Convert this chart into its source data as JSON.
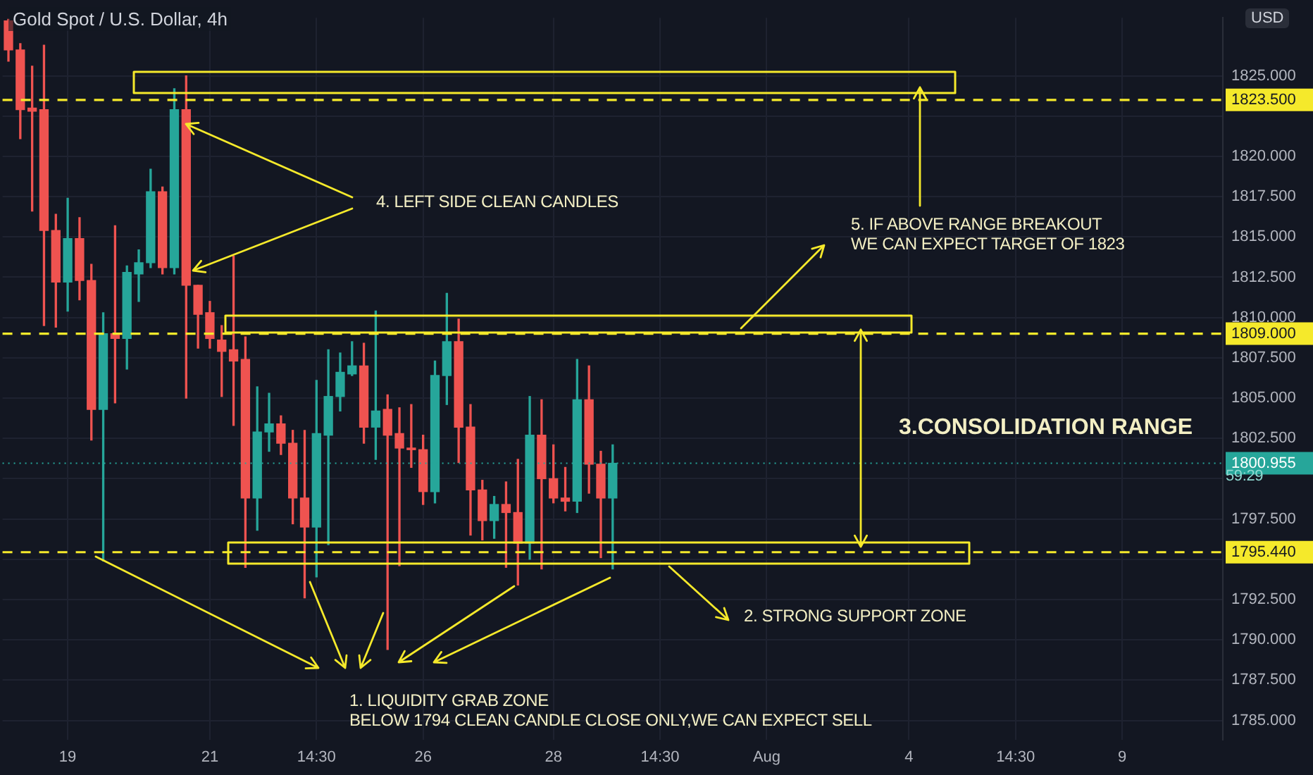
{
  "chart_data": {
    "type": "candlestick",
    "title": "Gold Spot / U.S. Dollar, 4h",
    "ylabel": "USD",
    "categories": [
      null,
      null,
      null,
      null,
      null,
      "19",
      null,
      null,
      null,
      null,
      null,
      null,
      null,
      null,
      null,
      null,
      null,
      "21",
      null,
      null,
      null,
      null,
      null,
      null,
      null,
      null,
      "14:30",
      null,
      null,
      null,
      null,
      null,
      null,
      null,
      null,
      "26",
      null,
      null,
      null,
      null,
      null,
      null,
      null,
      null,
      null,
      null,
      "28",
      null,
      null,
      null,
      null,
      null,
      null,
      null,
      null,
      "14:30",
      null,
      null,
      null,
      null,
      null,
      null,
      null,
      null,
      "Aug",
      null,
      null,
      null,
      null,
      null,
      null,
      null,
      null,
      null,
      null,
      null,
      "4",
      null,
      null,
      null,
      null,
      null,
      null,
      null,
      null,
      "14:30",
      null,
      null,
      null,
      null,
      null,
      null,
      null,
      null,
      "9",
      null,
      null,
      null,
      null,
      null,
      null,
      null,
      null
    ],
    "ohlc": [
      [
        1828.4,
        1828.5,
        1825.9,
        1826.6
      ],
      [
        1826.6,
        1827.0,
        1821.1,
        1822.9
      ],
      [
        1823.0,
        1825.6,
        1816.6,
        1822.8
      ],
      [
        1822.9,
        1826.9,
        1809.5,
        1815.4
      ],
      [
        1815.4,
        1816.4,
        1809.4,
        1812.2
      ],
      [
        1812.2,
        1817.4,
        1810.4,
        1814.9
      ],
      [
        1814.9,
        1816.2,
        1811.1,
        1812.3
      ],
      [
        1812.3,
        1813.3,
        1802.4,
        1804.3
      ],
      [
        1804.3,
        1810.3,
        1794.9,
        1809.0
      ],
      [
        1809.0,
        1815.7,
        1804.7,
        1808.7
      ],
      [
        1808.7,
        1813.2,
        1806.8,
        1812.8
      ],
      [
        1812.7,
        1814.2,
        1811.0,
        1813.4
      ],
      [
        1813.4,
        1819.2,
        1813.1,
        1817.8
      ],
      [
        1817.8,
        1818.1,
        1812.7,
        1813.1
      ],
      [
        1813.1,
        1824.2,
        1812.7,
        1822.9
      ],
      [
        1822.9,
        1825.0,
        1805.0,
        1812.0
      ],
      [
        1812.0,
        1812.0,
        1808.1,
        1810.2
      ],
      [
        1810.3,
        1811.0,
        1808.1,
        1808.7
      ],
      [
        1808.6,
        1809.5,
        1805.1,
        1807.9
      ],
      [
        1808.0,
        1813.8,
        1803.3,
        1807.3
      ],
      [
        1807.4,
        1808.8,
        1794.5,
        1798.8
      ],
      [
        1798.8,
        1805.7,
        1796.8,
        1802.9
      ],
      [
        1802.9,
        1805.3,
        1801.7,
        1803.4
      ],
      [
        1803.4,
        1803.9,
        1801.5,
        1802.2
      ],
      [
        1802.2,
        1803.0,
        1797.2,
        1798.8
      ],
      [
        1798.8,
        1803.0,
        1792.6,
        1797.0
      ],
      [
        1797.0,
        1806.1,
        1793.9,
        1802.8
      ],
      [
        1802.7,
        1808.0,
        1795.9,
        1805.1
      ],
      [
        1805.1,
        1807.8,
        1804.2,
        1806.6
      ],
      [
        1806.5,
        1808.5,
        1806.4,
        1807.0
      ],
      [
        1807.0,
        1808.4,
        1802.2,
        1803.2
      ],
      [
        1803.2,
        1810.4,
        1801.2,
        1804.2
      ],
      [
        1804.3,
        1805.2,
        1789.4,
        1802.7
      ],
      [
        1802.8,
        1804.4,
        1794.6,
        1801.9
      ],
      [
        1801.9,
        1804.6,
        1800.7,
        1801.8
      ],
      [
        1801.8,
        1802.7,
        1798.4,
        1799.2
      ],
      [
        1799.2,
        1807.3,
        1798.5,
        1806.4
      ],
      [
        1806.4,
        1811.5,
        1804.6,
        1808.5
      ],
      [
        1808.5,
        1809.9,
        1801.0,
        1803.2
      ],
      [
        1803.2,
        1804.6,
        1796.5,
        1799.3
      ],
      [
        1799.3,
        1799.9,
        1796.2,
        1797.4
      ],
      [
        1797.4,
        1798.9,
        1796.3,
        1798.4
      ],
      [
        1798.4,
        1799.8,
        1794.5,
        1797.9
      ],
      [
        1797.9,
        1801.2,
        1793.4,
        1796.0
      ],
      [
        1796.0,
        1805.1,
        1795.0,
        1802.7
      ],
      [
        1802.7,
        1804.9,
        1794.4,
        1800.0
      ],
      [
        1800.0,
        1802.1,
        1798.5,
        1798.8
      ],
      [
        1798.8,
        1800.7,
        1798.0,
        1798.6
      ],
      [
        1798.6,
        1807.4,
        1797.9,
        1804.9
      ],
      [
        1804.9,
        1807.0,
        1799.1,
        1800.9
      ],
      [
        1800.9,
        1801.7,
        1795.1,
        1798.8
      ],
      [
        1798.8,
        1802.1,
        1794.4,
        1800.955
      ],
      null,
      null,
      null,
      null,
      null,
      null,
      null,
      null,
      null,
      null,
      null,
      null,
      null,
      null,
      null,
      null,
      null,
      null,
      null,
      null,
      null,
      null,
      null,
      null,
      null,
      null,
      null,
      null,
      null,
      null,
      null,
      null,
      null,
      null,
      null,
      null,
      null,
      null,
      null,
      null,
      null,
      null,
      null,
      null,
      null,
      null,
      null,
      null,
      null,
      null,
      null
    ],
    "colors": [
      "#ef5350",
      "#ef5350",
      "#ef5350",
      "#ef5350",
      "#ef5350",
      "#26a69a",
      "#ef5350",
      "#ef5350",
      "#26a69a",
      "#ef5350",
      "#26a69a",
      "#26a69a",
      "#26a69a",
      "#ef5350",
      "#26a69a",
      "#ef5350",
      "#ef5350",
      "#ef5350",
      "#ef5350",
      "#ef5350",
      "#ef5350",
      "#26a69a",
      "#26a69a",
      "#ef5350",
      "#ef5350",
      "#ef5350",
      "#26a69a",
      "#26a69a",
      "#26a69a",
      "#26a69a",
      "#ef5350",
      "#26a69a",
      "#ef5350",
      "#ef5350",
      "#ef5350",
      "#ef5350",
      "#26a69a",
      "#26a69a",
      "#ef5350",
      "#ef5350",
      "#ef5350",
      "#26a69a",
      "#ef5350",
      "#ef5350",
      "#26a69a",
      "#ef5350",
      "#ef5350",
      "#ef5350",
      "#26a69a",
      "#ef5350",
      "#ef5350",
      "#26a69a",
      null,
      null,
      null,
      null,
      null,
      null,
      null,
      null,
      null,
      null,
      null,
      null,
      null,
      null,
      null,
      null,
      null,
      null,
      null,
      null,
      null,
      null,
      null,
      null,
      null,
      null,
      null,
      null,
      null,
      null,
      null,
      null,
      null,
      null,
      null,
      null,
      null,
      null,
      null,
      null,
      null,
      null,
      null,
      null,
      null,
      null,
      null,
      null,
      null,
      null,
      null
    ],
    "ylim": [
      1783.8,
      1828.6
    ],
    "yticks": [
      {
        "value": 1785,
        "label": "1785.000"
      },
      {
        "value": 1787.5,
        "label": "1787.500"
      },
      {
        "value": 1790,
        "label": "1790.000"
      },
      {
        "value": 1792.5,
        "label": "1792.500"
      },
      {
        "value": 1795,
        "label": null
      },
      {
        "value": 1797.5,
        "label": "1797.500"
      },
      {
        "value": 1800,
        "label": null
      },
      {
        "value": 1802.5,
        "label": "1802.500"
      },
      {
        "value": 1805,
        "label": "1805.000"
      },
      {
        "value": 1807.5,
        "label": "1807.500"
      },
      {
        "value": 1810,
        "label": "1810.000"
      },
      {
        "value": 1812.5,
        "label": "1812.500"
      },
      {
        "value": 1815,
        "label": "1815.000"
      },
      {
        "value": 1817.5,
        "label": "1817.500"
      },
      {
        "value": 1820,
        "label": "1820.000"
      },
      {
        "value": 1822.5,
        "label": null
      },
      {
        "value": 1825,
        "label": "1825.000"
      }
    ],
    "grid": true,
    "ref_lines": [
      {
        "axis": "y",
        "value": 1823.5,
        "label": "1823.500",
        "color": "#f5e92b",
        "line_style": "dashed"
      },
      {
        "axis": "y",
        "value": 1809.0,
        "label": "1809.000",
        "color": "#f5e92b",
        "line_style": "dashed"
      },
      {
        "axis": "y",
        "value": 1795.44,
        "label": "1795.440",
        "color": "#f5e92b",
        "line_style": "dashed"
      },
      {
        "axis": "y",
        "value": 1800.955,
        "label": "1800.955",
        "color": "#26a69a",
        "line_style": "dotted"
      }
    ],
    "annotations": [
      "4. LEFT SIDE CLEAN CANDLES",
      "5. IF ABOVE RANGE BREAKOUT\nWE CAN EXPECT TARGET OF 1823",
      "3.CONSOLIDATION RANGE",
      "2. STRONG SUPPORT ZONE",
      "1. LIQUIDITY GRAB ZONE\nBELOW 1794 CLEAN CANDLE CLOSE ONLY,WE CAN EXPECT SELL",
      "59:29"
    ]
  }
}
